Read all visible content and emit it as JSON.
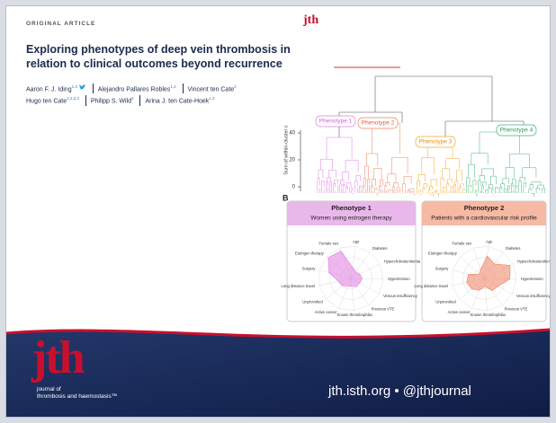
{
  "header": {
    "label": "ORIGINAL ARTICLE",
    "logo": "jth"
  },
  "article": {
    "title": "Exploring phenotypes of deep vein thrombosis in relation to clinical outcomes beyond recurrence",
    "authors": [
      {
        "name": "Aaron F. J. Iding",
        "affiliations": "1,3"
      },
      {
        "name": "Alejandro Pallares Robles",
        "affiliations": "1,2"
      },
      {
        "name": "Vincent ten Cate",
        "affiliations": "2"
      },
      {
        "name": "Hugo ten Cate",
        "affiliations": "1,2,3,4"
      },
      {
        "name": "Philipp S. Wild",
        "affiliations": "2"
      },
      {
        "name": "Arina J. ten Cate-Hoek",
        "affiliations": "1,3"
      }
    ]
  },
  "figure": {
    "dendrogram": {
      "y_label": "Sum of within-cluster c",
      "yticks": [
        "0",
        "20",
        "40"
      ],
      "clusters": [
        "Phenotype 1",
        "Phenotype 2",
        "Phenotype 3",
        "Phenotype 4"
      ]
    },
    "panel_label": "B",
    "cards": [
      {
        "title": "Phenotype 1",
        "subtitle": "Women using estrogen therapy"
      },
      {
        "title": "Phenotype 2",
        "subtitle": "Patients with a cardiovascular risk profile"
      }
    ],
    "radar_axes": [
      "Age",
      "Diabetes",
      "Hypercholesterolemia",
      "Hypertension",
      "Venous insufficiency",
      "Previous VTE",
      "Known thrombophilia",
      "Active cancer",
      "Unprovoked",
      "Long distance travel",
      "Surgery",
      "Estrogen therapy",
      "Female sex"
    ]
  },
  "footer": {
    "logo": "jth",
    "journal_line1": "journal of",
    "journal_line2": "thrombosis and haemostasis™",
    "links": "jth.isth.org • @jthjournal"
  }
}
